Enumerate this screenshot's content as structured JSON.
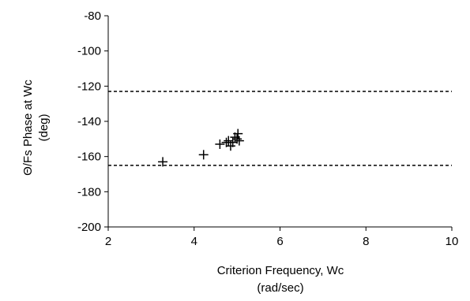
{
  "chart_data": {
    "type": "scatter",
    "title": "",
    "xlabel": [
      "Criterion Frequency, Wc",
      "(rad/sec)"
    ],
    "ylabel": [
      "Θ/Fs Phase at Wc",
      "(deg)"
    ],
    "xlim": [
      2,
      10
    ],
    "ylim": [
      -200,
      -80
    ],
    "xticks": [
      "2",
      "4",
      "6",
      "8",
      "10"
    ],
    "yticks": [
      "-80",
      "-100",
      "-120",
      "-140",
      "-160",
      "-180",
      "-200"
    ],
    "grid": false,
    "legend": "none",
    "marker": "plus",
    "reference_lines": [
      {
        "axis": "y",
        "value": -123,
        "style": "dashed"
      },
      {
        "axis": "y",
        "value": -165,
        "style": "dashed"
      }
    ],
    "series": [
      {
        "points": [
          {
            "x": 3.27,
            "y": -163
          },
          {
            "x": 4.22,
            "y": -159
          },
          {
            "x": 4.6,
            "y": -153
          },
          {
            "x": 4.75,
            "y": -152
          },
          {
            "x": 4.8,
            "y": -151
          },
          {
            "x": 4.85,
            "y": -154
          },
          {
            "x": 4.9,
            "y": -152
          },
          {
            "x": 4.95,
            "y": -149
          },
          {
            "x": 5.0,
            "y": -150
          },
          {
            "x": 5.02,
            "y": -147
          },
          {
            "x": 5.05,
            "y": -151
          }
        ]
      }
    ]
  }
}
